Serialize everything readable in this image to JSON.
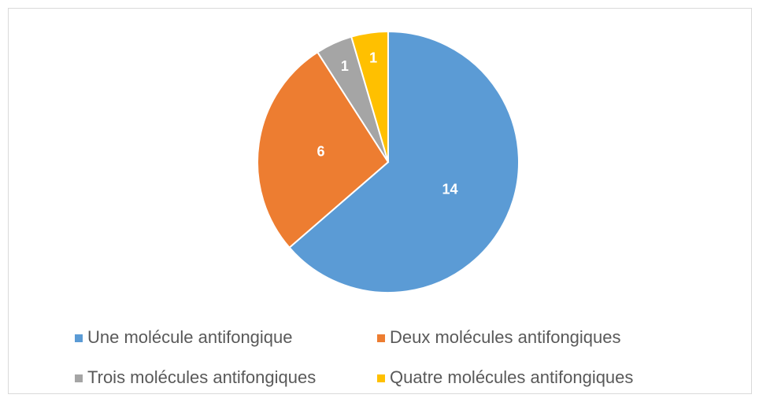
{
  "chart_data": {
    "type": "pie",
    "categories": [
      "Une molécule antifongique",
      "Deux molécules antifongiques",
      "Trois molécules antifongiques",
      "Quatre molécules antifongiques"
    ],
    "values": [
      14,
      6,
      1,
      1
    ],
    "colors": [
      "#5b9bd5",
      "#ed7d31",
      "#a5a5a5",
      "#ffc000"
    ],
    "legend": "bottom"
  }
}
